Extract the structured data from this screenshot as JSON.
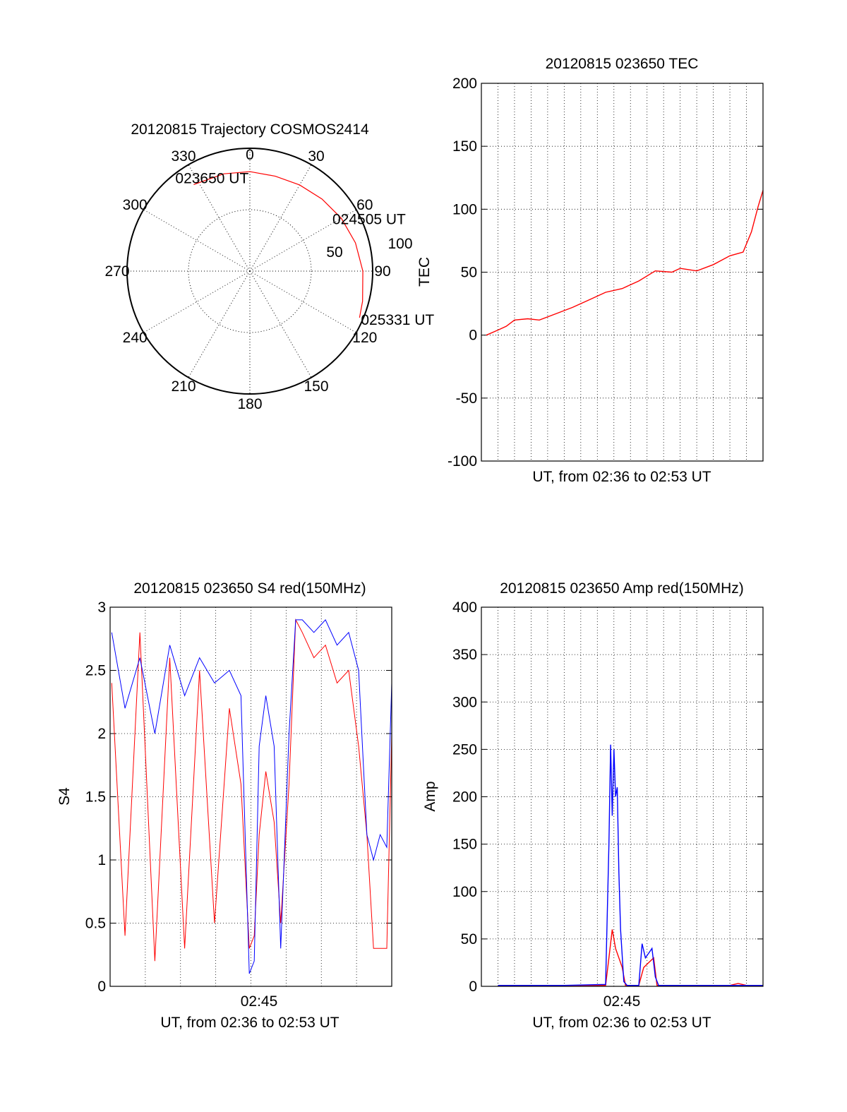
{
  "chart_data": [
    {
      "type": "polar",
      "title": "20120815 Trajectory COSMOS2414",
      "angle_ticks": [
        "0",
        "30",
        "60",
        "90",
        "120",
        "150",
        "180",
        "210",
        "240",
        "270",
        "300",
        "330"
      ],
      "radial_tick_labels": [
        "50",
        "100"
      ],
      "radial_range": [
        0,
        100
      ],
      "grid": true,
      "series": [
        {
          "color": "#ff0000",
          "azimuth": [
            327,
            345,
            0,
            15,
            30,
            45,
            60,
            75,
            90,
            105,
            113
          ],
          "radius": [
            84,
            82,
            81,
            80,
            81,
            83,
            86,
            89,
            92,
            95,
            97
          ]
        }
      ],
      "annotations": [
        {
          "text": "023650 UT",
          "azimuth": 327,
          "radius": 84
        },
        {
          "text": "024505 UT",
          "azimuth": 58,
          "radius": 82
        },
        {
          "text": "025331 UT",
          "azimuth": 113,
          "radius": 97
        }
      ]
    },
    {
      "type": "line",
      "title": "20120815 023650 TEC",
      "xlabel": "UT, from 02:36 to 02:53 UT",
      "ylabel": "TEC",
      "xlim": [
        0,
        17
      ],
      "ylim": [
        -100,
        200
      ],
      "yticks": [
        "-100",
        "-50",
        "0",
        "50",
        "100",
        "150",
        "200"
      ],
      "grid": true,
      "series": [
        {
          "color": "#ff0000",
          "x": [
            0.3,
            1.0,
            1.5,
            2.0,
            2.8,
            3.5,
            4.5,
            5.5,
            6.5,
            7.5,
            8.5,
            9.5,
            10.5,
            11.5,
            12.0,
            13.0,
            14.0,
            15.0,
            15.8,
            16.3,
            16.7,
            17.0
          ],
          "y": [
            0,
            4,
            7,
            12,
            13,
            12,
            17,
            22,
            28,
            34,
            37,
            43,
            51,
            50,
            53,
            51,
            56,
            63,
            66,
            82,
            102,
            115
          ]
        }
      ]
    },
    {
      "type": "line",
      "title": "20120815 023650 S4 red(150MHz)",
      "xlabel": "UT, from 02:36 to 02:53 UT",
      "ylabel": "S4",
      "xlim": [
        0,
        17
      ],
      "ylim": [
        0,
        3
      ],
      "xticks": [
        "02:45"
      ],
      "yticks": [
        "0",
        "0.5",
        "1",
        "1.5",
        "2",
        "2.5",
        "3"
      ],
      "grid": true,
      "series": [
        {
          "color": "#ff0000",
          "x": [
            0.1,
            0.9,
            1.8,
            2.7,
            3.6,
            4.5,
            5.4,
            6.3,
            7.2,
            7.9,
            8.4,
            8.7,
            9.0,
            9.4,
            9.9,
            10.3,
            10.8,
            11.2,
            11.6,
            12.3,
            13.0,
            13.7,
            14.4,
            15.0,
            15.5,
            15.9,
            16.3,
            16.7,
            17.0
          ],
          "y": [
            2.4,
            0.4,
            2.8,
            0.2,
            2.6,
            0.3,
            2.5,
            0.5,
            2.2,
            1.6,
            0.3,
            0.4,
            1.2,
            1.7,
            1.3,
            0.5,
            1.6,
            2.9,
            2.8,
            2.6,
            2.7,
            2.4,
            2.5,
            1.9,
            1.2,
            0.3,
            0.3,
            0.3,
            2.0
          ]
        },
        {
          "color": "#0000ff",
          "x": [
            0.1,
            0.9,
            1.8,
            2.7,
            3.6,
            4.5,
            5.4,
            6.3,
            7.2,
            7.9,
            8.4,
            8.7,
            9.0,
            9.4,
            9.9,
            10.3,
            10.8,
            11.2,
            11.6,
            12.3,
            13.0,
            13.7,
            14.4,
            15.0,
            15.5,
            15.9,
            16.3,
            16.7,
            17.0
          ],
          "y": [
            2.8,
            2.2,
            2.6,
            2.0,
            2.7,
            2.3,
            2.6,
            2.4,
            2.5,
            2.3,
            0.1,
            0.2,
            1.9,
            2.3,
            1.9,
            0.3,
            2.0,
            2.9,
            2.9,
            2.8,
            2.9,
            2.7,
            2.8,
            2.5,
            1.2,
            1.0,
            1.2,
            1.1,
            2.4
          ]
        }
      ]
    },
    {
      "type": "line",
      "title": "20120815 023650 Amp red(150MHz)",
      "xlabel": "UT, from 02:36 to 02:53 UT",
      "ylabel": "Amp",
      "xlim": [
        0,
        17
      ],
      "ylim": [
        0,
        400
      ],
      "xticks": [
        "02:45"
      ],
      "yticks": [
        "0",
        "50",
        "100",
        "150",
        "200",
        "250",
        "300",
        "350",
        "400"
      ],
      "grid": true,
      "series": [
        {
          "color": "#ff0000",
          "x": [
            1.0,
            5.0,
            7.5,
            7.7,
            7.9,
            8.1,
            8.3,
            8.5,
            8.7,
            9.5,
            9.8,
            10.1,
            10.4,
            10.6,
            12.0,
            15.0,
            15.5,
            16.0,
            17.0
          ],
          "y": [
            1,
            1,
            1,
            30,
            60,
            40,
            30,
            20,
            1,
            1,
            20,
            25,
            30,
            1,
            1,
            1,
            3,
            1,
            1
          ]
        },
        {
          "color": "#0000ff",
          "x": [
            1.0,
            5.0,
            7.5,
            7.7,
            7.8,
            7.9,
            8.0,
            8.1,
            8.2,
            8.3,
            8.4,
            8.6,
            8.8,
            9.5,
            9.7,
            9.9,
            10.1,
            10.3,
            10.5,
            10.7,
            12.0,
            15.0,
            17.0
          ],
          "y": [
            1,
            1,
            2,
            150,
            255,
            180,
            250,
            200,
            210,
            120,
            60,
            5,
            1,
            1,
            45,
            30,
            35,
            40,
            10,
            1,
            1,
            1,
            1
          ]
        }
      ]
    }
  ]
}
